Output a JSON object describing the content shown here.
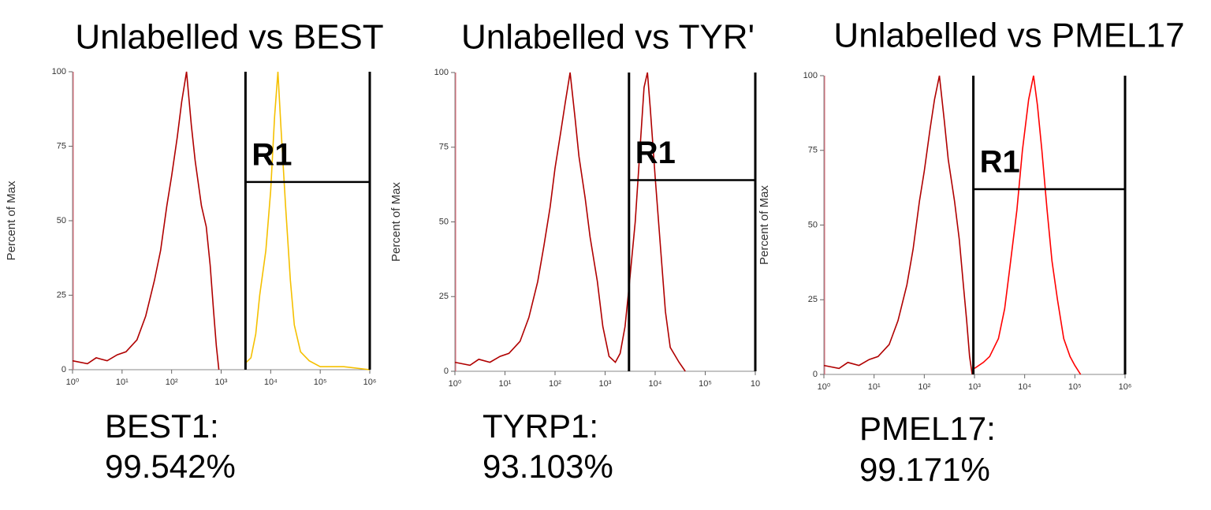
{
  "chart_data": [
    {
      "type": "line",
      "title": "Unlabelled vs BEST",
      "ylabel": "Percent of Max",
      "log_x": true,
      "xlim": [
        1,
        1000000
      ],
      "ylim": [
        0,
        100
      ],
      "xticks": [
        {
          "value": 1,
          "label": "10⁰"
        },
        {
          "value": 10,
          "label": "10¹"
        },
        {
          "value": 100,
          "label": "10²"
        },
        {
          "value": 1000,
          "label": "10³"
        },
        {
          "value": 10000,
          "label": "10⁴"
        },
        {
          "value": 100000,
          "label": "10⁵"
        },
        {
          "value": 1000000,
          "label": "10⁶"
        }
      ],
      "yticks": [
        0,
        25,
        50,
        75,
        100
      ],
      "series": [
        {
          "name": "Unlabelled",
          "color": "#b00000",
          "x": [
            1,
            2,
            3,
            5,
            8,
            12,
            20,
            30,
            45,
            60,
            80,
            100,
            130,
            160,
            200,
            250,
            300,
            400,
            500,
            600,
            700,
            800,
            900
          ],
          "values": [
            3,
            2,
            4,
            3,
            5,
            6,
            10,
            18,
            30,
            40,
            55,
            65,
            78,
            90,
            100,
            82,
            70,
            55,
            48,
            35,
            20,
            8,
            0
          ]
        },
        {
          "name": "BEST1",
          "color": "#f5c000",
          "x": [
            3000,
            4000,
            5000,
            6000,
            8000,
            10000,
            12000,
            14000,
            16000,
            20000,
            25000,
            30000,
            40000,
            60000,
            100000,
            300000,
            1000000
          ],
          "values": [
            2,
            4,
            12,
            25,
            40,
            60,
            85,
            100,
            82,
            55,
            30,
            15,
            6,
            3,
            1,
            1,
            0
          ]
        }
      ],
      "gate": {
        "label": "R1",
        "x": [
          3100,
          1000000
        ],
        "y": 63
      },
      "annotations": [
        "BEST1:",
        "99.542%"
      ]
    },
    {
      "type": "line",
      "title": "Unlabelled vs TYR'",
      "ylabel": "Percent of Max",
      "log_x": true,
      "xlim": [
        1,
        1000000
      ],
      "ylim": [
        0,
        100
      ],
      "xticks": [
        {
          "value": 1,
          "label": "10⁰"
        },
        {
          "value": 10,
          "label": "10¹"
        },
        {
          "value": 100,
          "label": "10²"
        },
        {
          "value": 1000,
          "label": "10³"
        },
        {
          "value": 10000,
          "label": "10⁴"
        },
        {
          "value": 100000,
          "label": "10⁵"
        },
        10
      ],
      "yticks": [
        0,
        25,
        50,
        75,
        100
      ],
      "series": [
        {
          "name": "TYRP1",
          "color": "#b00000",
          "x": [
            1,
            2,
            3,
            5,
            8,
            12,
            20,
            30,
            45,
            60,
            80,
            100,
            130,
            160,
            200,
            250,
            300,
            400,
            500,
            700,
            900,
            1200,
            1600,
            2000,
            2500,
            3000,
            4000,
            5000,
            6000,
            7000,
            8000,
            10000,
            13000,
            16000,
            20000,
            30000,
            40000
          ],
          "values": [
            3,
            2,
            4,
            3,
            5,
            6,
            10,
            18,
            30,
            42,
            55,
            68,
            80,
            90,
            100,
            85,
            72,
            58,
            45,
            30,
            15,
            5,
            3,
            6,
            15,
            28,
            50,
            75,
            95,
            100,
            88,
            65,
            40,
            20,
            8,
            3,
            0
          ]
        }
      ],
      "gate": {
        "label": "R1",
        "x": [
          3000,
          1000000
        ],
        "y": 64
      },
      "annotations": [
        "TYRP1:",
        "93.103%"
      ]
    },
    {
      "type": "line",
      "title": "Unlabelled vs PMEL17",
      "ylabel": "Percent of Max",
      "log_x": true,
      "xlim": [
        1,
        1000000
      ],
      "ylim": [
        0,
        100
      ],
      "xticks": [
        {
          "value": 1,
          "label": "10⁰"
        },
        {
          "value": 10,
          "label": "10¹"
        },
        {
          "value": 100,
          "label": "10²"
        },
        {
          "value": 1000,
          "label": "10³"
        },
        {
          "value": 10000,
          "label": "10⁴"
        },
        {
          "value": 100000,
          "label": "10⁵"
        },
        {
          "value": 1000000,
          "label": "10⁶"
        }
      ],
      "yticks": [
        0,
        25,
        50,
        75,
        100
      ],
      "series": [
        {
          "name": "Unlabelled",
          "color": "#b00000",
          "x": [
            1,
            2,
            3,
            5,
            8,
            12,
            20,
            30,
            45,
            60,
            80,
            100,
            130,
            160,
            200,
            250,
            300,
            400,
            500,
            600,
            700,
            800,
            900
          ],
          "values": [
            3,
            2,
            4,
            3,
            5,
            6,
            10,
            18,
            30,
            42,
            58,
            68,
            82,
            92,
            100,
            85,
            72,
            58,
            45,
            30,
            18,
            6,
            0
          ]
        },
        {
          "name": "PMEL17",
          "color": "#ff0000",
          "x": [
            1000,
            1500,
            2000,
            3000,
            4000,
            5000,
            7000,
            9000,
            12000,
            15000,
            18000,
            22000,
            28000,
            35000,
            45000,
            60000,
            80000,
            100000,
            130000
          ],
          "values": [
            2,
            4,
            6,
            12,
            22,
            35,
            55,
            75,
            92,
            100,
            90,
            75,
            55,
            38,
            25,
            12,
            6,
            3,
            0
          ]
        }
      ],
      "gate": {
        "label": "R1",
        "x": [
          950,
          1000000
        ],
        "y": 62
      },
      "annotations": [
        "PMEL17:",
        "99.171%"
      ]
    }
  ]
}
